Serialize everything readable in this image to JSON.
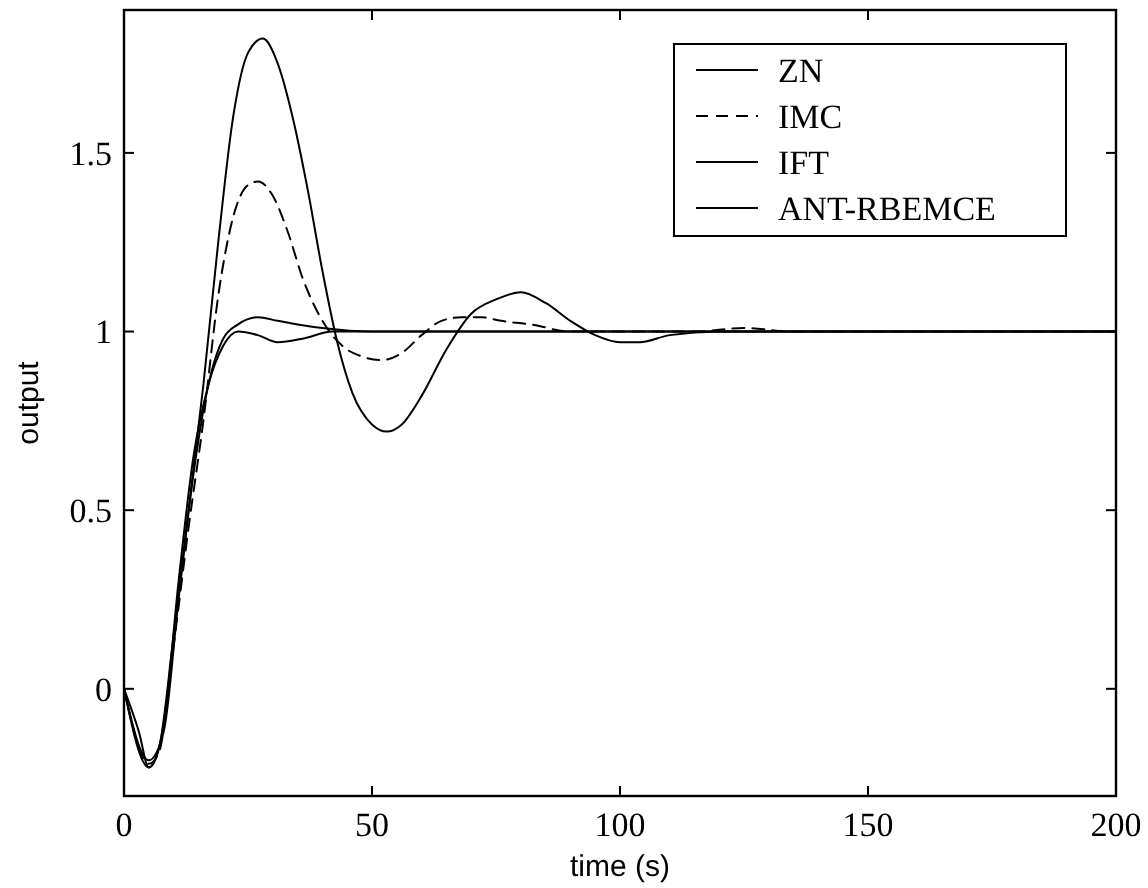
{
  "chart_data": {
    "type": "line",
    "xlabel": "time (s)",
    "ylabel": "output",
    "xlim": [
      0,
      200
    ],
    "ylim": [
      -0.3,
      1.9
    ],
    "xticks": [
      0,
      50,
      100,
      150,
      200
    ],
    "yticks": [
      0,
      0.5,
      1,
      1.5
    ],
    "legend": "top right",
    "grid": false,
    "marker": "none",
    "series": [
      {
        "name": "ZN",
        "color": "#000000",
        "line_style": "solid",
        "x": [
          0,
          3,
          5,
          7,
          10,
          13,
          16,
          19,
          22,
          25,
          28,
          31,
          34,
          37,
          40,
          43,
          46,
          50,
          53,
          56,
          60,
          65,
          70,
          75,
          80,
          85,
          90,
          95,
          100,
          104,
          110,
          120,
          200
        ],
        "values": [
          0,
          -0.12,
          -0.22,
          -0.17,
          0.15,
          0.5,
          0.85,
          1.25,
          1.6,
          1.78,
          1.82,
          1.75,
          1.6,
          1.4,
          1.17,
          0.97,
          0.83,
          0.74,
          0.72,
          0.74,
          0.82,
          0.95,
          1.05,
          1.09,
          1.11,
          1.08,
          1.03,
          0.99,
          0.97,
          0.97,
          0.99,
          1.0,
          1.0
        ]
      },
      {
        "name": "IMC",
        "color": "#000000",
        "line_style": "dashed",
        "x": [
          0,
          5,
          7,
          10,
          13,
          16,
          19,
          22,
          25,
          27,
          30,
          33,
          36,
          40,
          44,
          48,
          52,
          56,
          60,
          64,
          68,
          72,
          76,
          82,
          90,
          100,
          115,
          125,
          135,
          200
        ],
        "values": [
          0,
          -0.21,
          -0.18,
          0.12,
          0.45,
          0.75,
          1.1,
          1.32,
          1.41,
          1.42,
          1.38,
          1.28,
          1.15,
          1.03,
          0.96,
          0.93,
          0.92,
          0.94,
          0.99,
          1.03,
          1.04,
          1.04,
          1.03,
          1.02,
          1.0,
          1.0,
          1.0,
          1.01,
          1.0,
          1.0
        ]
      },
      {
        "name": "IFT",
        "color": "#000000",
        "line_style": "solid",
        "x": [
          0,
          5,
          8,
          11,
          14,
          17,
          20,
          23,
          27,
          31,
          35,
          40,
          50,
          200
        ],
        "values": [
          0,
          -0.2,
          -0.12,
          0.25,
          0.6,
          0.85,
          0.98,
          1.02,
          1.04,
          1.03,
          1.02,
          1.01,
          1.0,
          1.0
        ]
      },
      {
        "name": "ANT-RBEMCE",
        "color": "#000000",
        "line_style": "solid",
        "x": [
          0,
          5,
          8,
          11,
          14,
          17,
          20,
          23,
          27,
          31,
          36,
          42,
          50,
          200
        ],
        "values": [
          0,
          -0.22,
          -0.1,
          0.3,
          0.65,
          0.85,
          0.96,
          1.0,
          0.99,
          0.97,
          0.98,
          1.0,
          1.0,
          1.0
        ]
      }
    ]
  }
}
